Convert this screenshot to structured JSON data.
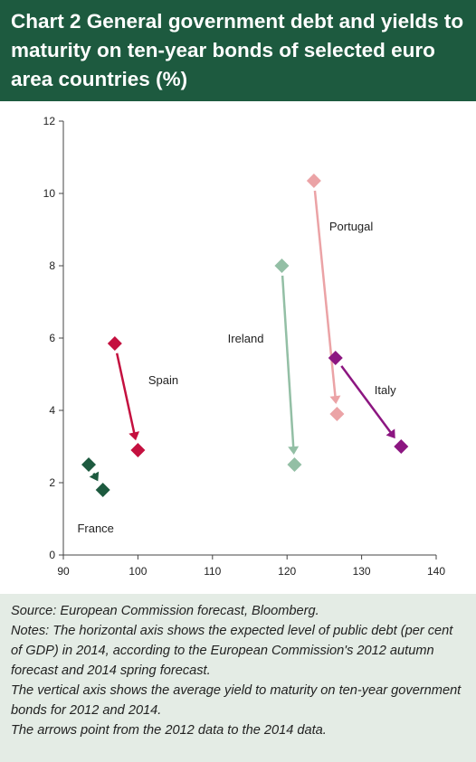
{
  "title": "Chart 2 General government debt and yields to maturity on ten-year bonds of selected euro area countries (%)",
  "notes": {
    "source": "Source: European Commission forecast, Bloomberg.",
    "notes_line1": "Notes: The horizontal axis shows the expected level of public debt (per cent of GDP) in 2014, according to the European Commission's 2012 autumn forecast and 2014 spring forecast.",
    "notes_line2": "The vertical axis shows the average yield to maturity on ten-year government bonds for 2012 and 2014.",
    "notes_line3": "The arrows point from the 2012 data to the 2014 data."
  },
  "chart_data": {
    "type": "scatter",
    "title": "Chart 2 General government debt and yields to maturity on ten-year bonds of selected euro area countries (%)",
    "xlabel": "",
    "ylabel": "",
    "xlim": [
      90,
      140
    ],
    "ylim": [
      0,
      12
    ],
    "xticks": [
      90,
      100,
      110,
      120,
      130,
      140
    ],
    "yticks": [
      0,
      2,
      4,
      6,
      8,
      10,
      12
    ],
    "grid": false,
    "marker": "diamond",
    "series": [
      {
        "name": "France",
        "color": "#1d5a3f",
        "points": [
          {
            "x": 93.4,
            "y": 2.5
          },
          {
            "x": 95.3,
            "y": 1.8
          }
        ]
      },
      {
        "name": "Spain",
        "color": "#c4103f",
        "points": [
          {
            "x": 96.9,
            "y": 5.85
          },
          {
            "x": 100.0,
            "y": 2.9
          }
        ]
      },
      {
        "name": "Ireland",
        "color": "#93bfa5",
        "points": [
          {
            "x": 119.3,
            "y": 8.0
          },
          {
            "x": 121.0,
            "y": 2.5
          }
        ]
      },
      {
        "name": "Portugal",
        "color": "#eba3a6",
        "points": [
          {
            "x": 123.6,
            "y": 10.35
          },
          {
            "x": 126.7,
            "y": 3.9
          }
        ]
      },
      {
        "name": "Italy",
        "color": "#8c1681",
        "points": [
          {
            "x": 126.5,
            "y": 5.45
          },
          {
            "x": 135.3,
            "y": 3.0
          }
        ]
      }
    ]
  }
}
